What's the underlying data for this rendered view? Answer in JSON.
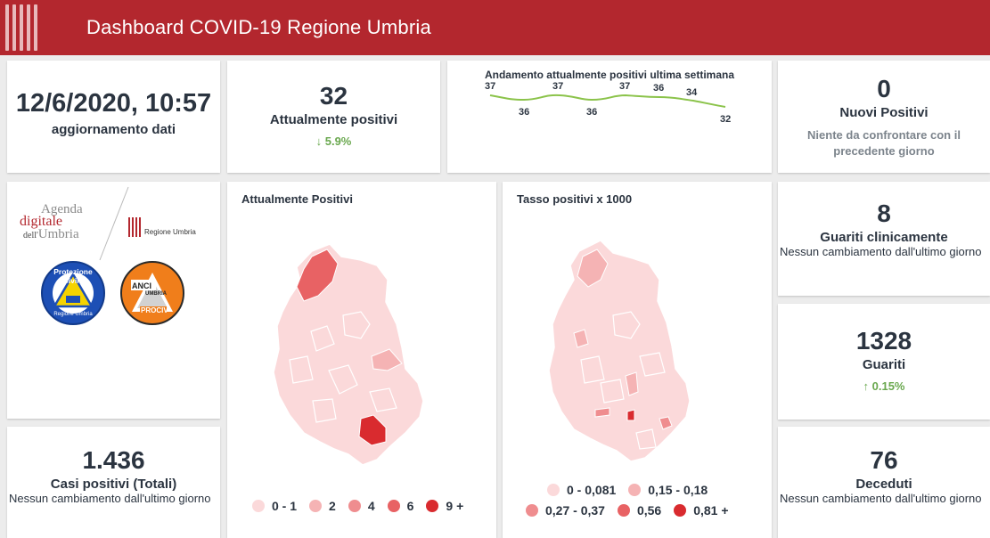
{
  "header": {
    "title": "Dashboard COVID-19 Regione Umbria"
  },
  "update": {
    "datetime": "12/6/2020, 10:57",
    "label": "aggiornamento dati"
  },
  "active": {
    "value": "32",
    "label": "Attualmente positivi",
    "delta": "5.9%",
    "delta_dir": "down"
  },
  "trend": {
    "title": "Andamento attualmente positivi ultima settimana",
    "values": [
      "37",
      "36",
      "37",
      "36",
      "37",
      "36",
      "34",
      "32"
    ]
  },
  "new_positives": {
    "value": "0",
    "label": "Nuovi Positivi",
    "note": "Niente da confrontare con il precedente giorno"
  },
  "logos": {
    "agenda_line1": "Agenda",
    "agenda_line2": "digitale",
    "agenda_line3_prefix": "dell'",
    "agenda_line3": "Umbria",
    "regione": "Regione Umbria",
    "protezione": "Protezione Civile",
    "protezione_sub": "Regione Umbria",
    "anci": "ANCI",
    "anci_umbria": "UMBRIA",
    "anci_prociv": "PROCIV"
  },
  "map_active": {
    "title": "Attualmente Positivi",
    "legend": [
      {
        "label": "0 - 1",
        "color": "#fbd9da"
      },
      {
        "label": "2",
        "color": "#f5b3b4"
      },
      {
        "label": "4",
        "color": "#ef8d8f"
      },
      {
        "label": "6",
        "color": "#e86264"
      },
      {
        "label": "9 +",
        "color": "#d92b2f"
      }
    ]
  },
  "map_rate": {
    "title": "Tasso positivi x 1000",
    "legend": [
      {
        "label": "0 - 0,081",
        "color": "#fbd9da"
      },
      {
        "label": "0,15 - 0,18",
        "color": "#f5b3b4"
      },
      {
        "label": "0,27 - 0,37",
        "color": "#ef8d8f"
      },
      {
        "label": "0,56",
        "color": "#e86264"
      },
      {
        "label": "0,81 +",
        "color": "#d92b2f"
      }
    ]
  },
  "healed_clinically": {
    "value": "8",
    "label": "Guariti clinicamente",
    "note": "Nessun cambiamento dall'ultimo giorno"
  },
  "healed": {
    "value": "1328",
    "label": "Guariti",
    "delta": "0.15%",
    "delta_dir": "up"
  },
  "total_cases": {
    "value": "1.436",
    "label": "Casi positivi (Totali)",
    "note": "Nessun cambiamento dall'ultimo giorno"
  },
  "deaths": {
    "value": "76",
    "label": "Deceduti",
    "note": "Nessun cambiamento dall'ultimo giorno"
  },
  "colors": {
    "brand": "#b3272e",
    "positive_delta": "#6aa84f",
    "text": "#2b3440"
  }
}
